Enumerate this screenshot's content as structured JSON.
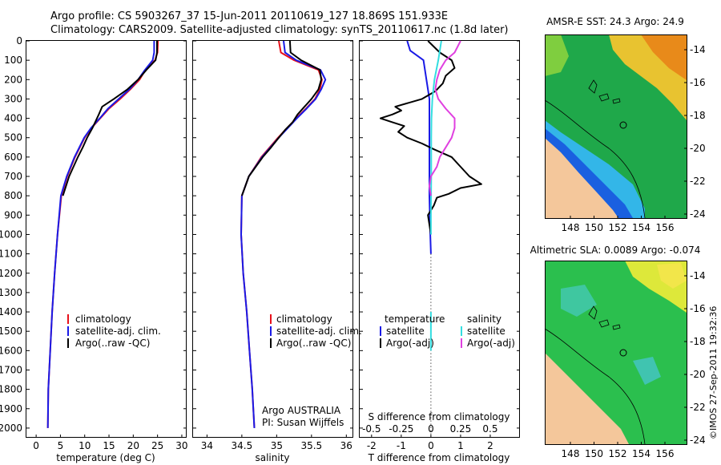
{
  "title": {
    "line1": "Argo profile: CS 5903267_37 15-Jun-2011 20110619_127 18.869S 151.933E",
    "line2": "Climatology: CARS2009. Satellite-adjusted climatology: synTS_20110617.nc (1.8d later)"
  },
  "depth_ticks": [
    "0",
    "100",
    "200",
    "300",
    "400",
    "500",
    "600",
    "700",
    "800",
    "900",
    "1000",
    "1100",
    "1200",
    "1300",
    "1400",
    "1500",
    "1600",
    "1700",
    "1800",
    "1900",
    "2000"
  ],
  "colors": {
    "climatology": "#e8101a",
    "satellite": "#1a1ae6",
    "argo": "#000000",
    "sal_satellite": "#33dde0",
    "sal_argo": "#e040e0"
  },
  "annotations": {
    "argo_country": "Argo AUSTRALIA",
    "pi": "PI: Susan Wijffels",
    "diff_top_label": "S difference from climatology",
    "sal_zero_tick": "0",
    "timestamp": "©IMOS 27-Sep-2011 19:32:36"
  },
  "legends": {
    "temp": [
      "climatology",
      "satellite-adj. clim.",
      "Argo(..raw -QC)"
    ],
    "sal": [
      "climatology",
      "satellite-adj. clim.",
      "Argo(..raw -QC)"
    ],
    "diff_headers": [
      "temperature",
      "salinity"
    ],
    "diff_items": [
      "satellite",
      "Argo(-adj)",
      "satellite",
      "Argo(-adj)"
    ]
  },
  "chart_data": [
    {
      "type": "line",
      "xlabel": "temperature (deg C)",
      "ylabel": "",
      "xlim": [
        -2,
        31
      ],
      "ylim": [
        2050,
        0
      ],
      "x_ticks": [
        "0",
        "5",
        "10",
        "15",
        "20",
        "25",
        "30"
      ],
      "series": [
        {
          "name": "climatology",
          "depth": [
            0,
            60,
            100,
            150,
            200,
            250,
            300,
            350,
            400,
            450,
            500,
            600,
            700,
            800,
            1000,
            1200,
            1400,
            1600,
            1800,
            2000
          ],
          "values": [
            25.1,
            25.0,
            24.5,
            22.5,
            21.3,
            19.4,
            17.3,
            15.0,
            13.2,
            11.4,
            10.0,
            8.0,
            6.4,
            5.2,
            4.4,
            3.8,
            3.3,
            2.9,
            2.5,
            2.4
          ]
        },
        {
          "name": "satellite-adj. clim.",
          "depth": [
            0,
            60,
            100,
            150,
            200,
            250,
            300,
            350,
            400,
            450,
            500,
            600,
            700,
            800,
            1000,
            1200,
            1400,
            1600,
            1800,
            2000
          ],
          "values": [
            24.3,
            24.3,
            24.0,
            22.4,
            21.0,
            19.2,
            17.0,
            14.8,
            13.1,
            11.3,
            9.9,
            7.9,
            6.3,
            5.1,
            4.4,
            3.8,
            3.3,
            2.9,
            2.5,
            2.4
          ]
        },
        {
          "name": "Argo(..raw -QC)",
          "depth": [
            0,
            60,
            100,
            150,
            200,
            250,
            300,
            340,
            380,
            450,
            500,
            550,
            600,
            700,
            800
          ],
          "values": [
            24.9,
            24.9,
            24.6,
            22.7,
            21.0,
            18.8,
            16.0,
            13.6,
            12.9,
            11.6,
            10.5,
            9.6,
            8.6,
            6.8,
            5.5
          ]
        }
      ]
    },
    {
      "type": "line",
      "xlabel": "salinity",
      "ylabel": "",
      "xlim": [
        33.8,
        36.1
      ],
      "ylim": [
        2050,
        0
      ],
      "x_ticks": [
        "34",
        "34.5",
        "35",
        "35.5",
        "36"
      ],
      "series": [
        {
          "name": "climatology",
          "depth": [
            0,
            60,
            100,
            150,
            200,
            250,
            300,
            350,
            400,
            450,
            500,
            600,
            700,
            800,
            1000,
            1200,
            1400,
            1600,
            1800,
            2000
          ],
          "values": [
            35.03,
            35.06,
            35.25,
            35.6,
            35.65,
            35.62,
            35.55,
            35.42,
            35.28,
            35.15,
            35.02,
            34.78,
            34.6,
            34.5,
            34.49,
            34.52,
            34.57,
            34.61,
            34.65,
            34.68
          ]
        },
        {
          "name": "satellite-adj. clim.",
          "depth": [
            0,
            60,
            100,
            150,
            200,
            250,
            300,
            350,
            400,
            450,
            500,
            600,
            700,
            800,
            1000,
            1200,
            1400,
            1600,
            1800,
            2000
          ],
          "values": [
            35.1,
            35.12,
            35.28,
            35.63,
            35.7,
            35.64,
            35.56,
            35.43,
            35.29,
            35.16,
            35.03,
            34.79,
            34.6,
            34.5,
            34.49,
            34.52,
            34.57,
            34.61,
            34.65,
            34.68
          ]
        },
        {
          "name": "Argo(..raw -QC)",
          "depth": [
            0,
            60,
            100,
            150,
            200,
            250,
            300,
            340,
            380,
            420,
            460,
            500,
            550,
            600,
            700,
            800
          ],
          "values": [
            35.19,
            35.2,
            35.35,
            35.62,
            35.64,
            35.6,
            35.5,
            35.4,
            35.3,
            35.23,
            35.12,
            35.03,
            34.92,
            34.8,
            34.6,
            34.5
          ]
        }
      ]
    },
    {
      "type": "line",
      "xlabel": "T difference from climatology",
      "ylabel": "",
      "xlim": [
        -2.4,
        3.0
      ],
      "ylim": [
        2050,
        0
      ],
      "x_ticks": [
        "-2",
        "-1",
        "0",
        "1",
        "2"
      ],
      "top_ticks": {
        "labels": [
          "-0.5",
          "-0.25",
          "0",
          "0.25",
          "0.5"
        ],
        "values": [
          -0.5,
          -0.25,
          0,
          0.25,
          0.5
        ]
      },
      "series": [
        {
          "name": "temperature satellite",
          "depth": [
            0,
            50,
            100,
            200,
            300,
            400,
            500,
            600,
            800,
            1000,
            1100
          ],
          "values": [
            -0.8,
            -0.7,
            -0.25,
            -0.15,
            -0.05,
            -0.05,
            -0.05,
            -0.05,
            -0.05,
            -0.02,
            0
          ]
        },
        {
          "name": "temperature Argo(-adj)",
          "depth": [
            0,
            60,
            100,
            140,
            180,
            220,
            260,
            300,
            340,
            360,
            380,
            400,
            420,
            440,
            470,
            500,
            530,
            560,
            600,
            650,
            700,
            740,
            760,
            790,
            810,
            850,
            900,
            1000
          ],
          "values": [
            -0.1,
            0.3,
            0.7,
            0.8,
            0.5,
            0.4,
            0.15,
            -0.3,
            -1.2,
            -1.0,
            -1.3,
            -1.7,
            -1.3,
            -0.9,
            -1.1,
            -0.8,
            -0.3,
            0.1,
            0.7,
            1.0,
            1.3,
            1.7,
            1.0,
            0.6,
            0.2,
            0.1,
            -0.1,
            0
          ]
        },
        {
          "name": "salinity satellite",
          "depth": [
            0,
            50,
            100,
            200,
            300,
            400,
            500,
            700,
            900,
            1000
          ],
          "values": [
            0.35,
            0.3,
            0.25,
            0.12,
            0.05,
            0.02,
            0.01,
            0.01,
            0,
            0
          ]
        },
        {
          "name": "salinity Argo(-adj)",
          "depth": [
            0,
            60,
            100,
            150,
            200,
            250,
            300,
            350,
            400,
            450,
            500,
            550,
            600,
            650,
            700,
            750,
            800
          ],
          "values": [
            1.0,
            0.8,
            0.5,
            0.3,
            0.2,
            0.15,
            0.25,
            0.5,
            0.8,
            0.8,
            0.7,
            0.5,
            0.3,
            0.2,
            0.0,
            -0.05,
            0.0
          ]
        }
      ]
    }
  ],
  "maps": [
    {
      "title": "AMSR-E SST: 24.3 Argo: 24.9",
      "x_ticks": [
        "148",
        "150",
        "152",
        "154",
        "156"
      ],
      "y_ticks": [
        "-14",
        "-16",
        "-18",
        "-20",
        "-22",
        "-24"
      ]
    },
    {
      "title": "Altimetric SLA: 0.0089 Argo: -0.074",
      "x_ticks": [
        "148",
        "150",
        "152",
        "154",
        "156"
      ],
      "y_ticks": [
        "-14",
        "-16",
        "-18",
        "-20",
        "-22",
        "-24"
      ]
    }
  ]
}
